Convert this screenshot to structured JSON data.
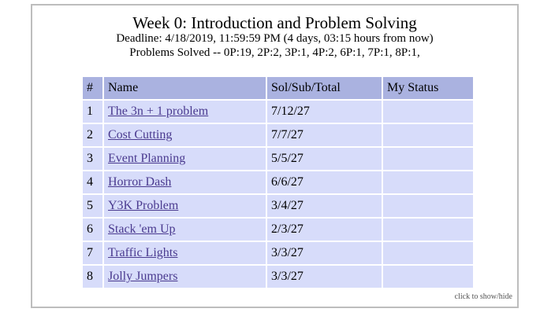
{
  "header": {
    "title": "Week 0: Introduction and Problem Solving",
    "deadline": "Deadline: 4/18/2019, 11:59:59 PM (4 days, 03:15 hours from now)",
    "solved": "Problems Solved -- 0P:19, 2P:2, 3P:1, 4P:2, 6P:1, 7P:1, 8P:1,"
  },
  "table": {
    "columns": [
      "#",
      "Name",
      "Sol/Sub/Total",
      "My Status"
    ],
    "rows": [
      {
        "num": "1",
        "name": "The 3n + 1 problem",
        "sol": "7/12/27",
        "status": ""
      },
      {
        "num": "2",
        "name": "Cost Cutting",
        "sol": "7/7/27",
        "status": ""
      },
      {
        "num": "3",
        "name": "Event Planning",
        "sol": "5/5/27",
        "status": ""
      },
      {
        "num": "4",
        "name": "Horror Dash",
        "sol": "6/6/27",
        "status": ""
      },
      {
        "num": "5",
        "name": "Y3K Problem",
        "sol": "3/4/27",
        "status": ""
      },
      {
        "num": "6",
        "name": "Stack 'em Up",
        "sol": "2/3/27",
        "status": ""
      },
      {
        "num": "7",
        "name": "Traffic Lights",
        "sol": "3/3/27",
        "status": ""
      },
      {
        "num": "8",
        "name": "Jolly Jumpers",
        "sol": "3/3/27",
        "status": ""
      }
    ]
  },
  "footer": {
    "toggle_label": "click to show/hide"
  },
  "colors": {
    "header_bg": "#aab2e0",
    "cell_bg": "#d7dcfa",
    "link": "#4a3a8f",
    "panel_border": "#bdbdbd"
  }
}
